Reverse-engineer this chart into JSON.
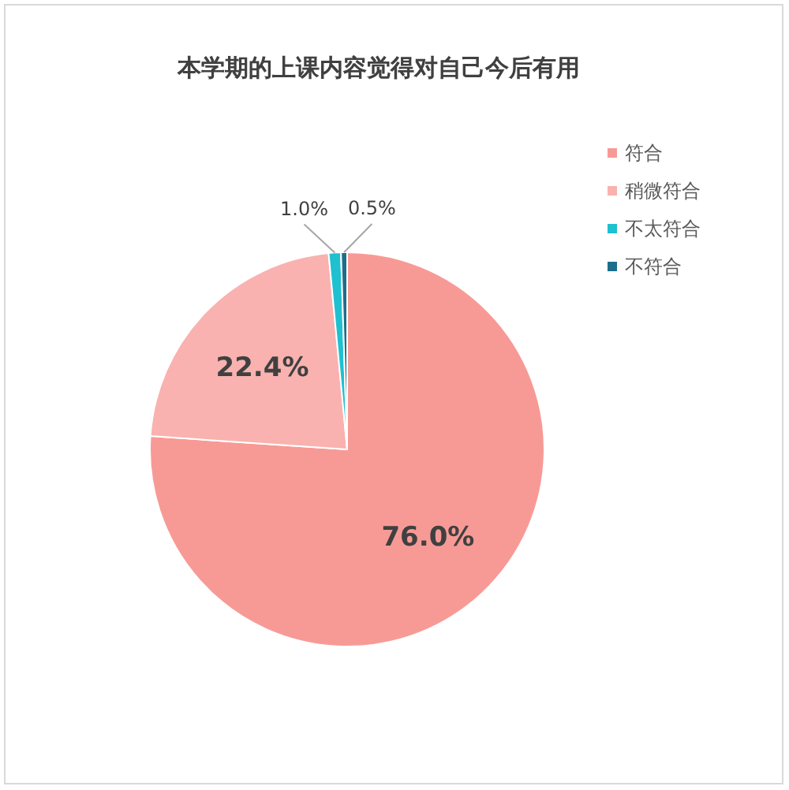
{
  "chart_data": {
    "type": "pie",
    "title": "本学期的上课内容觉得对自己今后有用",
    "categories": [
      "符合",
      "稍微符合",
      "不太符合",
      "不符合"
    ],
    "values": [
      76.0,
      22.4,
      1.0,
      0.5
    ],
    "colors": [
      "#f79a96",
      "#f9b2af",
      "#1fc0d0",
      "#1d6e8a"
    ],
    "value_labels": [
      "76.0%",
      "22.4%",
      "1.0%",
      "0.5%"
    ],
    "legend": "right"
  }
}
